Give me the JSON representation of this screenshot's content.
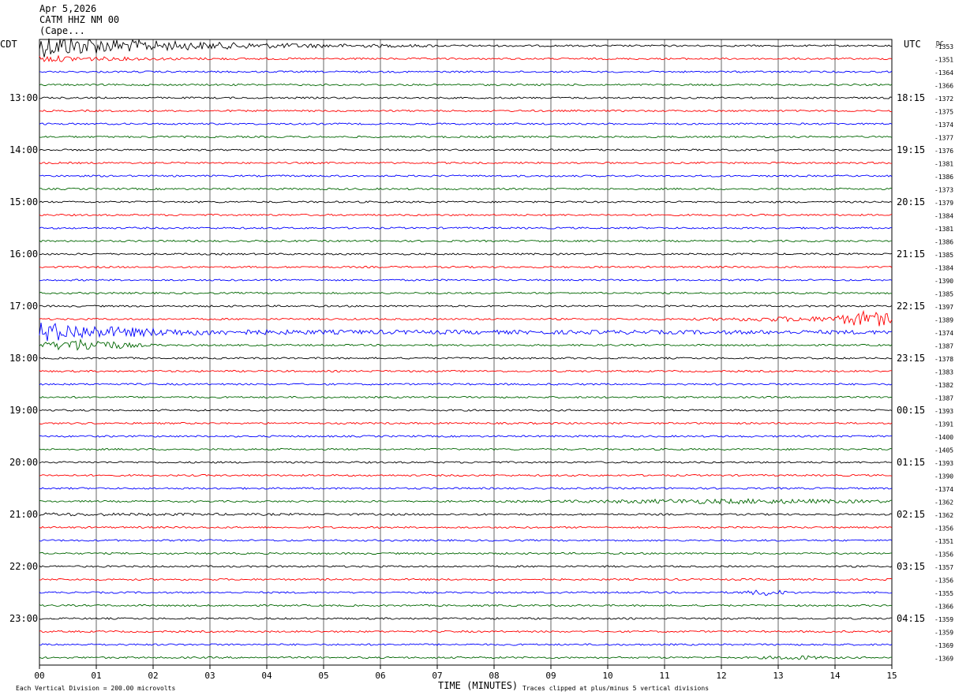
{
  "header": {
    "date": "Apr 5,2026",
    "station": "CATM HHZ NM 00",
    "location": "(Cape..."
  },
  "footer": {
    "scale_note": "Each Vertical Division =  200.00 microvolts",
    "clip_note": "Traces clipped at plus/minus 5 vertical divisions"
  },
  "chart_data": {
    "type": "line",
    "title": "",
    "xlabel": "TIME (MINUTES)",
    "xlim": [
      0,
      15
    ],
    "x_ticks": [
      "00",
      "01",
      "02",
      "03",
      "04",
      "05",
      "06",
      "07",
      "08",
      "09",
      "10",
      "11",
      "12",
      "13",
      "14",
      "15"
    ],
    "left_axis_label": "CDT",
    "right_axis_label": "UTC",
    "dc_label": "DC",
    "left_hour_labels": [
      "13:00",
      "14:00",
      "15:00",
      "16:00",
      "17:00",
      "18:00",
      "19:00",
      "20:00",
      "21:00",
      "22:00",
      "23:00"
    ],
    "right_hour_labels": [
      "18:15",
      "19:15",
      "20:15",
      "21:15",
      "22:15",
      "23:15",
      "00:15",
      "01:15",
      "02:15",
      "03:15",
      "04:15"
    ],
    "dc_offsets": [
      "-1353",
      "-1351",
      "-1364",
      "-1366",
      "-1372",
      "-1375",
      "-1374",
      "-1377",
      "-1376",
      "-1381",
      "-1386",
      "-1373",
      "-1379",
      "-1384",
      "-1381",
      "-1386",
      "-1385",
      "-1384",
      "-1390",
      "-1385",
      "-1397",
      "-1389",
      "-1374",
      "-1387",
      "-1378",
      "-1383",
      "-1382",
      "-1387",
      "-1393",
      "-1391",
      "-1400",
      "-1405",
      "-1393",
      "-1390",
      "-1374",
      "-1362",
      "-1362",
      "-1356",
      "-1351",
      "-1356",
      "-1357",
      "-1356",
      "-1355",
      "-1366",
      "-1359",
      "-1359",
      "-1369",
      "-1369"
    ],
    "trace_colors": [
      "#000000",
      "#ff0000",
      "#0000ff",
      "#006600"
    ],
    "minutes_per_trace": 15,
    "traces_per_hour": 4,
    "grid": true
  }
}
